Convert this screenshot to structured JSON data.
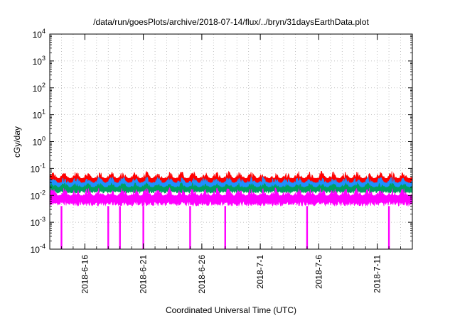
{
  "chart_data": {
    "type": "area",
    "title": "/data/run/goesPlots/archive/2018-07-14/flux/../bryn/31daysEarthData.plot",
    "xlabel": "Coordinated Universal Time (UTC)",
    "ylabel": "cGy/day",
    "y_scale": "log",
    "ylim": [
      0.0001,
      10000
    ],
    "y_ticks": [
      {
        "value": 0.0001,
        "base": "10",
        "exp": "-4"
      },
      {
        "value": 0.001,
        "base": "10",
        "exp": "-3"
      },
      {
        "value": 0.01,
        "base": "10",
        "exp": "-2"
      },
      {
        "value": 0.1,
        "base": "10",
        "exp": "-1"
      },
      {
        "value": 1,
        "base": "10",
        "exp": "0"
      },
      {
        "value": 10,
        "base": "10",
        "exp": "1"
      },
      {
        "value": 100,
        "base": "10",
        "exp": "2"
      },
      {
        "value": 1000,
        "base": "10",
        "exp": "3"
      },
      {
        "value": 10000,
        "base": "10",
        "exp": "4"
      }
    ],
    "xlim": [
      "2018-06-13",
      "2018-07-14"
    ],
    "x_ticks": [
      "2018-6-16",
      "2018-6-21",
      "2018-6-26",
      "2018-7-1",
      "2018-7-6",
      "2018-7-11"
    ],
    "grid": true,
    "series": [
      {
        "color": "#ff0000",
        "typical_range": [
          0.02,
          0.08
        ]
      },
      {
        "color": "#1e90ff",
        "typical_range": [
          0.015,
          0.05
        ]
      },
      {
        "color": "#00a060",
        "typical_range": [
          0.012,
          0.03
        ]
      },
      {
        "color": "#ff00ff",
        "typical_range": [
          0.004,
          0.02
        ],
        "dropouts_to": 0.0001,
        "dropout_dates": [
          "2018-06-14",
          "2018-06-18",
          "2018-06-19",
          "2018-06-21",
          "2018-06-25",
          "2018-06-28",
          "2018-07-05",
          "2018-07-12"
        ]
      }
    ]
  }
}
